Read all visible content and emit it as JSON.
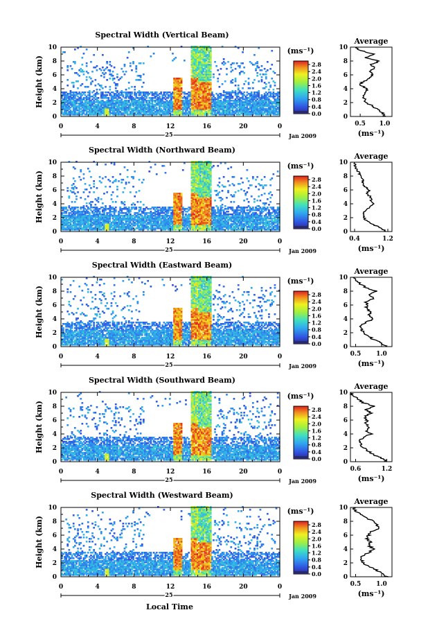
{
  "figure": {
    "local_time_label": "Local Time",
    "date_label": "Jan 2009",
    "day_label": "25",
    "height_label": "Height (km)",
    "colorbar_unit": "(ms⁻¹)",
    "average_title": "Average",
    "average_unit": "(ms⁻¹)"
  },
  "chart_data": [
    {
      "type": "heatmap",
      "title": "Spectral Width (Vertical Beam)",
      "ylabel": "Height (km)",
      "x_ticks": [
        "0",
        "4",
        "8",
        "12",
        "16",
        "20",
        "0"
      ],
      "xlim": [
        0,
        24
      ],
      "y_ticks": [
        "0",
        "2",
        "4",
        "6",
        "8",
        "10"
      ],
      "ylim": [
        0,
        10
      ],
      "colorbar": {
        "ticks": [
          "0.0",
          "0.4",
          "0.8",
          "1.2",
          "1.6",
          "2.0",
          "2.4",
          "2.8"
        ],
        "range": [
          0,
          3.0
        ]
      },
      "profile": {
        "title": "Average",
        "x_ticks": [
          "0.5",
          "1.0"
        ],
        "xlim": [
          0.3,
          1.15
        ],
        "heights": [
          0,
          0.5,
          1,
          1.5,
          2,
          2.5,
          3,
          3.5,
          4,
          4.5,
          5,
          5.5,
          6,
          6.5,
          7,
          7.5,
          8,
          8.5,
          9,
          9.5,
          10
        ],
        "values": [
          1.0,
          0.95,
          0.85,
          0.75,
          0.62,
          0.6,
          0.55,
          0.6,
          0.65,
          0.5,
          0.55,
          0.7,
          0.75,
          0.7,
          0.78,
          0.72,
          0.9,
          0.6,
          0.8,
          0.5,
          0.4
        ]
      }
    },
    {
      "type": "heatmap",
      "title": "Spectral Width (Northward Beam)",
      "ylabel": "Height (km)",
      "x_ticks": [
        "0",
        "4",
        "8",
        "12",
        "16",
        "20",
        "0"
      ],
      "xlim": [
        0,
        24
      ],
      "y_ticks": [
        "0",
        "2",
        "4",
        "6",
        "8",
        "10"
      ],
      "ylim": [
        0,
        10
      ],
      "colorbar": {
        "ticks": [
          "0.0",
          "0.4",
          "0.8",
          "1.2",
          "1.6",
          "2.0",
          "2.4",
          "2.8"
        ],
        "range": [
          0,
          3.0
        ]
      },
      "profile": {
        "title": "Average",
        "x_ticks": [
          "0.4",
          "1.2"
        ],
        "xlim": [
          0.3,
          1.3
        ],
        "heights": [
          0,
          0.5,
          1,
          1.5,
          2,
          2.5,
          3,
          3.5,
          4,
          4.5,
          5,
          5.5,
          6,
          6.5,
          7,
          7.5,
          8,
          8.5,
          9,
          9.5,
          10
        ],
        "values": [
          1.15,
          1.05,
          0.85,
          0.7,
          0.62,
          0.6,
          0.65,
          0.75,
          0.85,
          0.8,
          0.78,
          0.7,
          0.75,
          0.65,
          0.6,
          0.62,
          0.55,
          0.5,
          0.45,
          0.42,
          0.4
        ]
      }
    },
    {
      "type": "heatmap",
      "title": "Spectral Width (Eastward Beam)",
      "ylabel": "Height (km)",
      "x_ticks": [
        "0",
        "4",
        "8",
        "12",
        "16",
        "20",
        "0"
      ],
      "xlim": [
        0,
        24
      ],
      "y_ticks": [
        "0",
        "2",
        "4",
        "6",
        "8",
        "10"
      ],
      "ylim": [
        0,
        10
      ],
      "colorbar": {
        "ticks": [
          "0.0",
          "0.4",
          "0.8",
          "1.2",
          "1.6",
          "2.0",
          "2.4",
          "2.8"
        ],
        "range": [
          0,
          3.0
        ]
      },
      "profile": {
        "title": "Average",
        "x_ticks": [
          "0.5",
          "1.0"
        ],
        "xlim": [
          0.4,
          1.2
        ],
        "heights": [
          0,
          0.5,
          1,
          1.5,
          2,
          2.5,
          3,
          3.5,
          4,
          4.5,
          5,
          5.5,
          6,
          6.5,
          7,
          7.5,
          8,
          8.5,
          9,
          9.5,
          10
        ],
        "values": [
          1.1,
          1.0,
          0.85,
          0.75,
          0.65,
          0.62,
          0.6,
          0.7,
          0.85,
          0.75,
          0.8,
          0.7,
          0.72,
          0.7,
          0.85,
          0.75,
          0.9,
          0.7,
          0.6,
          0.5,
          0.45
        ]
      }
    },
    {
      "type": "heatmap",
      "title": "Spectral Width (Southward Beam)",
      "ylabel": "Height (km)",
      "x_ticks": [
        "0",
        "4",
        "8",
        "12",
        "16",
        "20",
        "0"
      ],
      "xlim": [
        0,
        24
      ],
      "y_ticks": [
        "0",
        "2",
        "4",
        "6",
        "8",
        "10"
      ],
      "ylim": [
        0,
        10
      ],
      "colorbar": {
        "ticks": [
          "0.0",
          "0.4",
          "0.8",
          "1.2",
          "1.6",
          "2.0",
          "2.4",
          "2.8"
        ],
        "range": [
          0,
          3.0
        ]
      },
      "profile": {
        "title": "Average",
        "x_ticks": [
          "0.6",
          "1.2"
        ],
        "xlim": [
          0.5,
          1.3
        ],
        "heights": [
          0,
          0.5,
          1,
          1.5,
          2,
          2.5,
          3,
          3.5,
          4,
          4.5,
          5,
          5.5,
          6,
          6.5,
          7,
          7.5,
          8,
          8.5,
          9,
          9.5,
          10
        ],
        "values": [
          1.2,
          1.1,
          0.95,
          0.85,
          0.75,
          0.7,
          0.65,
          0.75,
          0.9,
          0.8,
          0.85,
          0.8,
          0.82,
          0.78,
          0.9,
          0.8,
          0.95,
          0.75,
          0.65,
          0.55,
          0.5
        ]
      }
    },
    {
      "type": "heatmap",
      "title": "Spectral Width (Westward Beam)",
      "ylabel": "Height (km)",
      "xlabel": "Local Time",
      "x_ticks": [
        "0",
        "4",
        "8",
        "12",
        "16",
        "20",
        "0"
      ],
      "xlim": [
        0,
        24
      ],
      "y_ticks": [
        "0",
        "2",
        "4",
        "6",
        "8",
        "10"
      ],
      "ylim": [
        0,
        10
      ],
      "colorbar": {
        "ticks": [
          "0.0",
          "0.4",
          "0.8",
          "1.2",
          "1.6",
          "2.0",
          "2.4",
          "2.8"
        ],
        "range": [
          0,
          3.0
        ]
      },
      "profile": {
        "title": "Average",
        "x_ticks": [
          "0.5",
          "1.0"
        ],
        "xlim": [
          0.4,
          1.2
        ],
        "heights": [
          0,
          0.5,
          1,
          1.5,
          2,
          2.5,
          3,
          3.5,
          4,
          4.5,
          5,
          5.5,
          6,
          6.5,
          7,
          7.5,
          8,
          8.5,
          9,
          9.5,
          10
        ],
        "values": [
          1.1,
          1.0,
          0.9,
          0.75,
          0.65,
          0.6,
          0.62,
          0.75,
          0.85,
          0.75,
          0.78,
          0.72,
          0.75,
          0.8,
          0.95,
          0.9,
          0.85,
          0.7,
          0.6,
          0.5,
          0.45
        ]
      }
    }
  ]
}
